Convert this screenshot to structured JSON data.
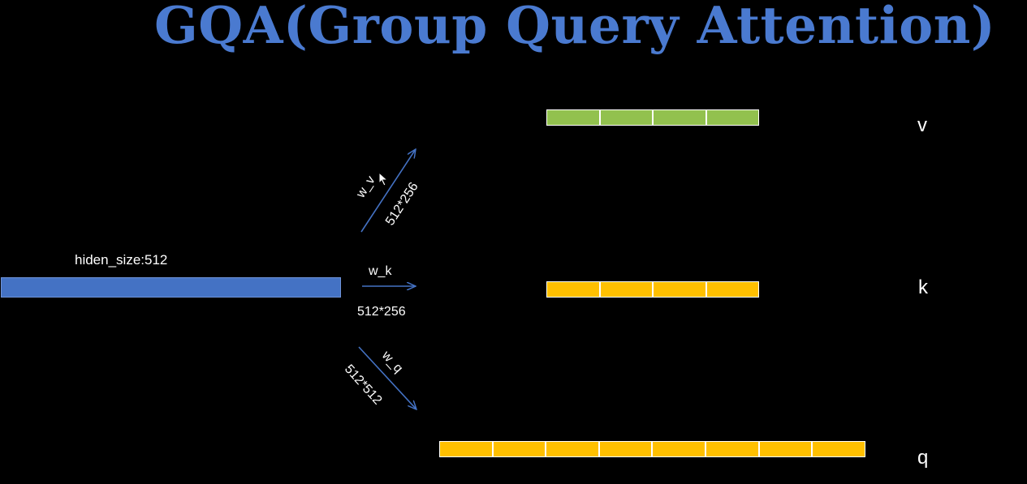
{
  "title": "GQA(Group Query Attention)",
  "hidden": {
    "label": "hiden_size:512",
    "color": "#4472c4"
  },
  "rows": [
    {
      "id": "v",
      "letter": "v",
      "segments": 4,
      "color": "#92c14e",
      "weight": "w_v",
      "dims": "512*256"
    },
    {
      "id": "k",
      "letter": "k",
      "segments": 4,
      "color": "#ffc000",
      "weight": "w_k",
      "dims": "512*256"
    },
    {
      "id": "q",
      "letter": "q",
      "segments": 8,
      "color": "#ffc000",
      "weight": "w_q",
      "dims": "512*512"
    }
  ],
  "colors": {
    "title": "#4a7ad0",
    "arrow": "#4472c4",
    "background": "#000000"
  }
}
